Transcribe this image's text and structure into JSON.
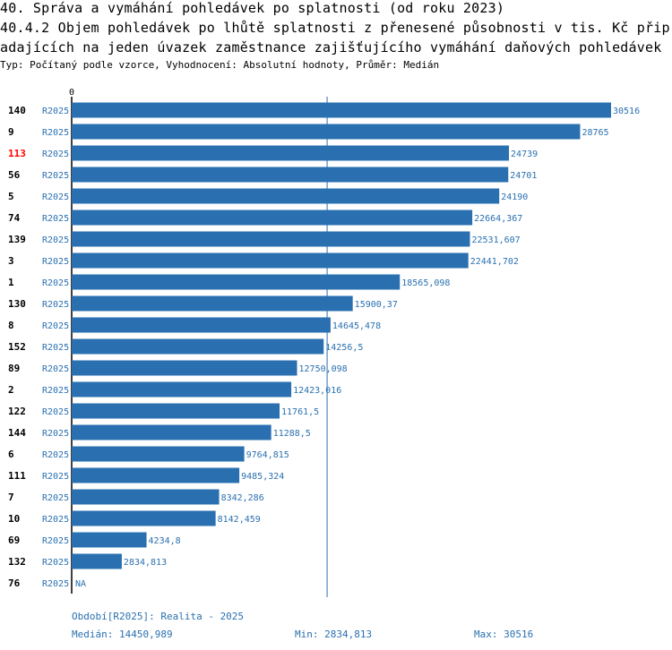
{
  "title_line1": "40. Správa a vymáhání pohledávek po splatnosti (od roku 2023)",
  "title_line2": "40.4.2 Objem pohledávek po lhůtě splatnosti z přenesené působnosti v tis. Kč přip",
  "title_line3": "adajících na jeden úvazek zaměstnance zajišťujícího vymáhání daňových pohledávek",
  "subtitle": "Typ: Počítaný podle vzorce, Vyhodnocení: Absolutní hodnoty, Průměr: Medián",
  "colors": {
    "bar": "#2a70b0",
    "highlight": "#ff0000",
    "text": "#000000",
    "label": "#2a70b0"
  },
  "chart_data": {
    "type": "bar",
    "orientation": "horizontal",
    "axis_zero_label": "0",
    "xlim": [
      0,
      30516
    ],
    "period_label": "R2025",
    "highlight_category": "113",
    "median": 14450.989,
    "categories": [
      "140",
      "9",
      "113",
      "56",
      "5",
      "74",
      "139",
      "3",
      "1",
      "130",
      "8",
      "152",
      "89",
      "2",
      "122",
      "144",
      "6",
      "111",
      "7",
      "10",
      "69",
      "132",
      "76"
    ],
    "values": [
      30516,
      28765,
      24739,
      24701,
      24190,
      22664.367,
      22531.607,
      22441.702,
      18565.098,
      15900.37,
      14645.478,
      14256.5,
      12750.098,
      12423.016,
      11761.5,
      11288.5,
      9764.815,
      9485.324,
      8342.286,
      8142.459,
      4234.8,
      2834.813,
      null
    ],
    "value_labels": [
      "30516",
      "28765",
      "24739",
      "24701",
      "24190",
      "22664,367",
      "22531,607",
      "22441,702",
      "18565,098",
      "15900,37",
      "14645,478",
      "14256,5",
      "12750,098",
      "12423,016",
      "11761,5",
      "11288,5",
      "9764,815",
      "9485,324",
      "8342,286",
      "8142,459",
      "4234,8",
      "2834,813",
      "NA"
    ]
  },
  "footer": {
    "period": "Období[R2025]: Realita - 2025",
    "median": "Medián: 14450,989",
    "min": "Min: 2834,813",
    "max": "Max: 30516"
  }
}
